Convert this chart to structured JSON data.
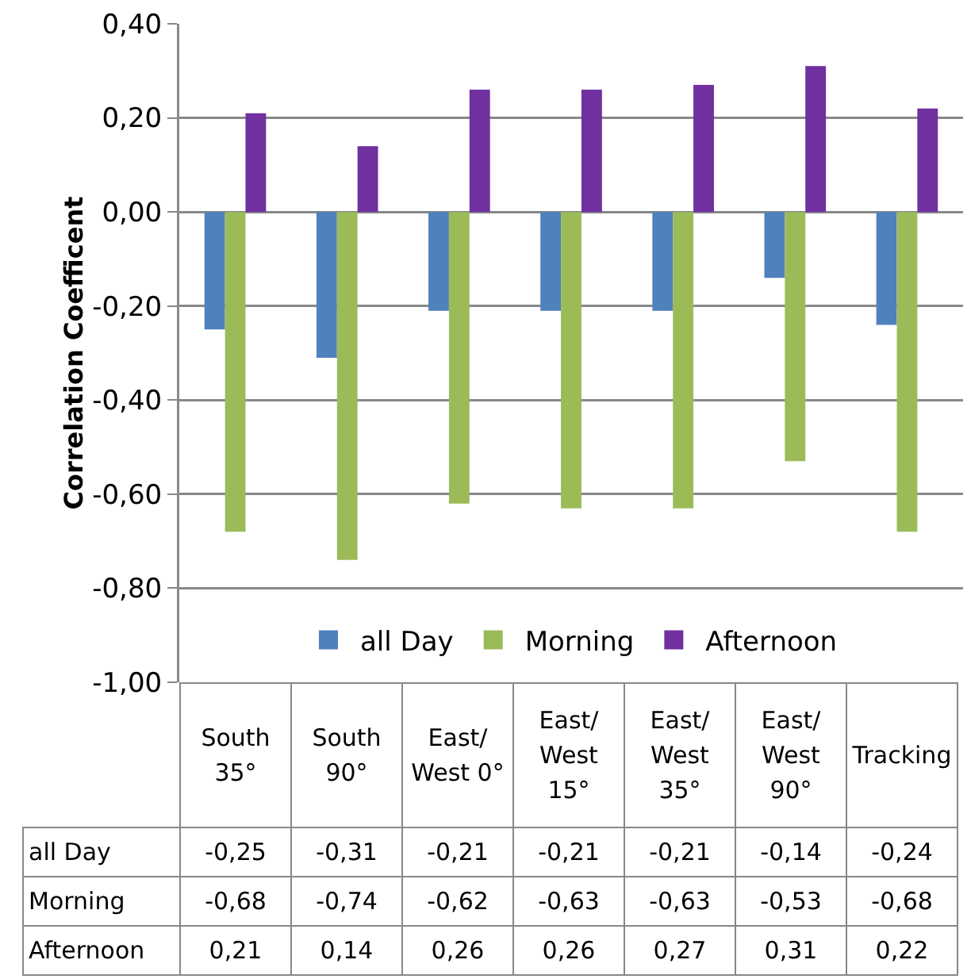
{
  "chart_data": {
    "type": "bar",
    "ylabel": "Correlation Coefficent",
    "categories": [
      "South 35°",
      "South 90°",
      "East/West 0°",
      "East/West 15°",
      "East/West 35°",
      "East/West 90°",
      "Tracking"
    ],
    "series": [
      {
        "name": "all Day",
        "color": "#4f81bd",
        "values": [
          -0.25,
          -0.31,
          -0.21,
          -0.21,
          -0.21,
          -0.14,
          -0.24
        ],
        "value_labels": [
          "-0,25",
          "-0,31",
          "-0,21",
          "-0,21",
          "-0,21",
          "-0,14",
          "-0,24"
        ]
      },
      {
        "name": "Morning",
        "color": "#9bbb59",
        "values": [
          -0.68,
          -0.74,
          -0.62,
          -0.63,
          -0.63,
          -0.53,
          -0.68
        ],
        "value_labels": [
          "-0,68",
          "-0,74",
          "-0,62",
          "-0,63",
          "-0,63",
          "-0,53",
          "-0,68"
        ]
      },
      {
        "name": "Afternoon",
        "color": "#7030a0",
        "values": [
          0.21,
          0.14,
          0.26,
          0.26,
          0.27,
          0.31,
          0.22
        ],
        "value_labels": [
          "0,21",
          "0,14",
          "0,26",
          "0,26",
          "0,27",
          "0,31",
          "0,22"
        ]
      }
    ],
    "ylim": [
      -1,
      0.4
    ],
    "yticks": [
      {
        "value": -1,
        "label": "-1,00"
      },
      {
        "value": -0.8,
        "label": "-0,80"
      },
      {
        "value": -0.6,
        "label": "-0,60"
      },
      {
        "value": -0.4,
        "label": "-0,40"
      },
      {
        "value": -0.2,
        "label": "-0,20"
      },
      {
        "value": 0,
        "label": "0,00"
      },
      {
        "value": 0.2,
        "label": "0,20"
      },
      {
        "value": 0.4,
        "label": "0,40"
      }
    ],
    "grid": "y",
    "legend": "bottom"
  }
}
